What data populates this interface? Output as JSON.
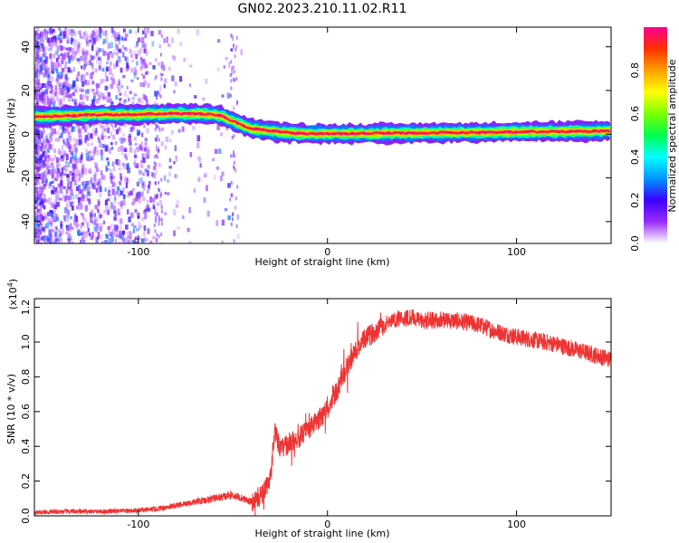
{
  "title": "GN02.2023.210.11.02.R11",
  "chart_data": [
    {
      "type": "heatmap",
      "xlabel": "Height of straight line (km)",
      "ylabel": "Frequency (Hz)",
      "xlim": [
        -155,
        150
      ],
      "ylim": [
        -50,
        49
      ],
      "xticks": [
        -100,
        0,
        100
      ],
      "yticks": [
        -40,
        -20,
        0,
        20,
        40
      ],
      "ytick_labels": [
        "-40",
        "-20",
        "0",
        "20",
        "40"
      ],
      "colorbar": {
        "label": "Normalized spectral amplitude",
        "range": [
          0,
          1
        ],
        "ticks": [
          0.0,
          0.2,
          0.4,
          0.6,
          0.8
        ],
        "tick_labels": [
          "0.0",
          "0.2",
          "0.4",
          "0.6",
          "0.8"
        ],
        "colormap": [
          "#ffffff",
          "#9a2cff",
          "#3c00ff",
          "#0096ff",
          "#00ffff",
          "#00ff50",
          "#7cff00",
          "#ffff00",
          "#ffa000",
          "#ff3000",
          "#ff0090"
        ]
      },
      "ridge": {
        "x": [
          -155,
          -120,
          -100,
          -80,
          -60,
          -55,
          -50,
          -45,
          -40,
          -35,
          -30,
          -20,
          -10,
          0,
          10,
          20,
          40,
          60,
          80,
          100,
          120,
          150
        ],
        "y": [
          8,
          9,
          9,
          9.5,
          9,
          8,
          6,
          4,
          2.5,
          2,
          1.5,
          0.5,
          0.3,
          0.2,
          0.2,
          0.3,
          0.5,
          0.7,
          0.8,
          1,
          1.2,
          1.5
        ]
      }
    },
    {
      "type": "line",
      "xlabel": "Height of straight line (km)",
      "ylabel": "SNR (10 * v/v)",
      "y_multiplier": "(x10",
      "y_multiplier_exp": "4",
      "y_multiplier_close": ")",
      "xlim": [
        -155,
        150
      ],
      "ylim": [
        0,
        1.25
      ],
      "xticks": [
        -100,
        0,
        100
      ],
      "yticks": [
        0.0,
        0.2,
        0.4,
        0.6,
        0.8,
        1.0,
        1.2
      ],
      "ytick_labels": [
        "0.0",
        "0.2",
        "0.4",
        "0.6",
        "0.8",
        "1.0",
        "1.2"
      ],
      "line_color": "#ee3333",
      "series": [
        {
          "x": [
            -155,
            -140,
            -120,
            -100,
            -90,
            -80,
            -70,
            -60,
            -50,
            -45,
            -40,
            -35,
            -30,
            -28,
            -25,
            -20,
            -15,
            -10,
            -5,
            0,
            5,
            10,
            15,
            20,
            25,
            30,
            35,
            40,
            45,
            50,
            60,
            70,
            80,
            90,
            100,
            110,
            120,
            130,
            140,
            150
          ],
          "y": [
            0.02,
            0.025,
            0.025,
            0.03,
            0.04,
            0.06,
            0.08,
            0.1,
            0.12,
            0.1,
            0.08,
            0.12,
            0.22,
            0.5,
            0.38,
            0.42,
            0.45,
            0.5,
            0.55,
            0.62,
            0.72,
            0.85,
            0.95,
            1.02,
            1.06,
            1.1,
            1.13,
            1.14,
            1.14,
            1.12,
            1.13,
            1.12,
            1.1,
            1.06,
            1.03,
            1.01,
            0.99,
            0.96,
            0.93,
            0.9
          ]
        }
      ]
    }
  ]
}
